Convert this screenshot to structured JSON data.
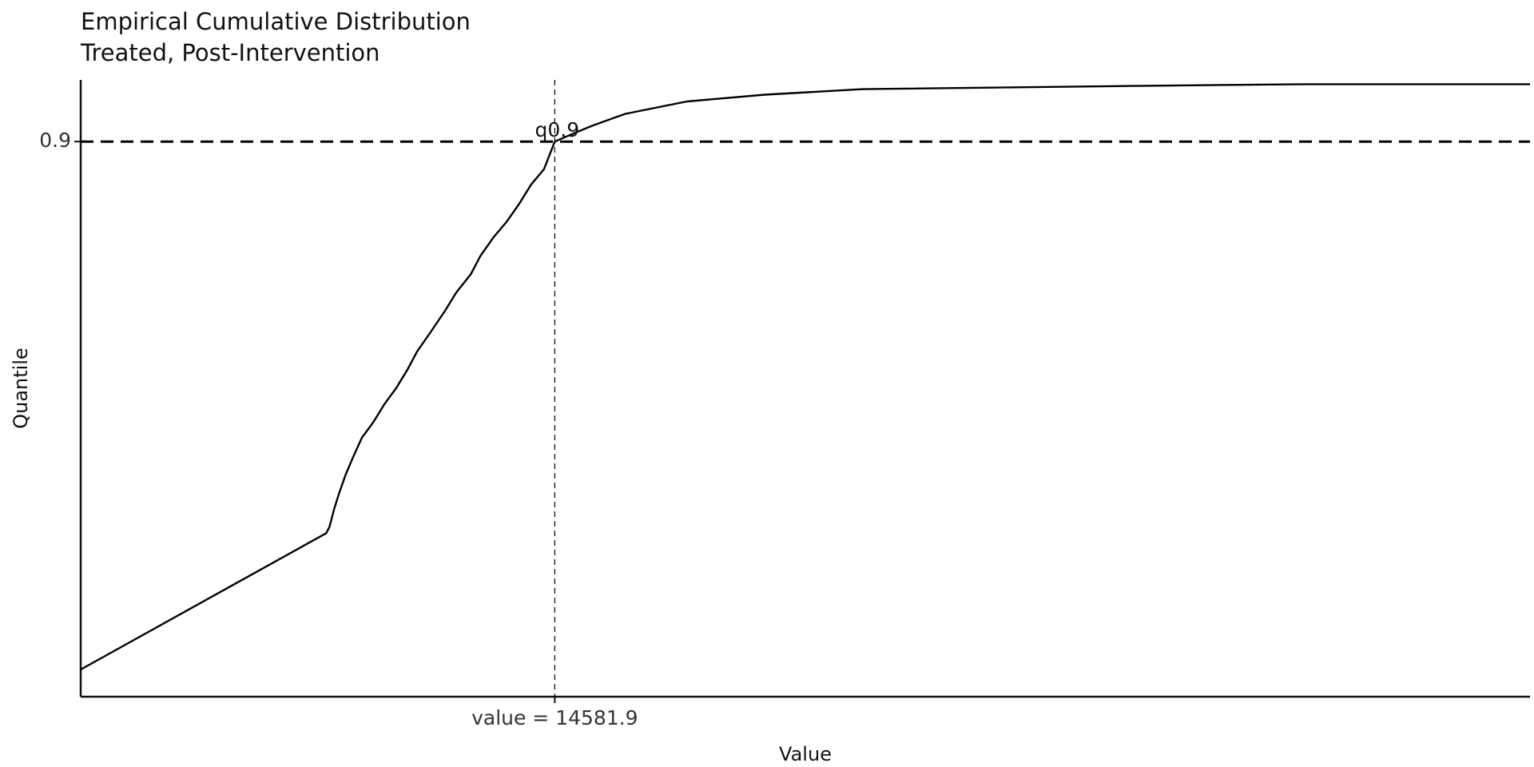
{
  "chart_data": {
    "type": "line",
    "title": "Empirical Cumulative Distribution",
    "subtitle": "Treated, Post-Intervention",
    "xlabel": "Value",
    "ylabel": "Quantile",
    "y_ticks": [
      {
        "value": 0.9,
        "label": "0.9"
      }
    ],
    "x_ticks": [
      {
        "value": 14581.9,
        "label": "value = 14581.9"
      }
    ],
    "reference_lines": {
      "horizontal": {
        "y": 0.9,
        "style": "dashed"
      },
      "vertical": {
        "x": 14581.9,
        "style": "dashed"
      }
    },
    "annotations": [
      {
        "text": "q0.9",
        "x": 14581.9,
        "y": 0.9
      }
    ],
    "xlim": [
      0,
      44580
    ],
    "ylim": [
      0.0,
      1.0
    ],
    "grid": false,
    "legend": "none",
    "series": [
      {
        "color": "#000000",
        "points": [
          [
            0,
            0.044
          ],
          [
            7550,
            0.265
          ],
          [
            7650,
            0.275
          ],
          [
            7800,
            0.305
          ],
          [
            7950,
            0.33
          ],
          [
            8150,
            0.36
          ],
          [
            8350,
            0.385
          ],
          [
            8650,
            0.42
          ],
          [
            9000,
            0.445
          ],
          [
            9350,
            0.475
          ],
          [
            9700,
            0.5
          ],
          [
            10050,
            0.53
          ],
          [
            10350,
            0.56
          ],
          [
            10750,
            0.59
          ],
          [
            11200,
            0.625
          ],
          [
            11550,
            0.655
          ],
          [
            12000,
            0.685
          ],
          [
            12300,
            0.715
          ],
          [
            12700,
            0.745
          ],
          [
            13100,
            0.77
          ],
          [
            13500,
            0.8
          ],
          [
            13850,
            0.83
          ],
          [
            14250,
            0.855
          ],
          [
            14581.9,
            0.9
          ],
          [
            15150,
            0.913
          ],
          [
            15750,
            0.926
          ],
          [
            16750,
            0.945
          ],
          [
            18650,
            0.965
          ],
          [
            21050,
            0.976
          ],
          [
            24050,
            0.985
          ],
          [
            32050,
            0.99
          ],
          [
            37550,
            0.993
          ],
          [
            44580,
            0.993
          ]
        ]
      }
    ]
  }
}
